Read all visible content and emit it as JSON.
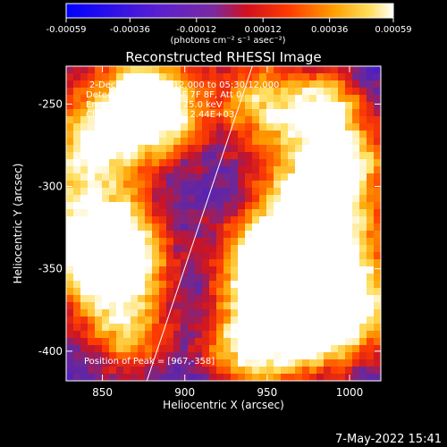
{
  "colorbar": {
    "tick_labels": [
      "-0.00059",
      "-0.00036",
      "-0.00012",
      "0.00012",
      "0.00036",
      "0.00059"
    ],
    "tick_values": [
      -0.00059,
      -0.00036,
      -0.00012,
      0.00012,
      0.00036,
      0.00059
    ],
    "range": [
      -0.00059,
      0.00059
    ],
    "unit_label": "(photons cm⁻² s⁻¹ asec⁻²)",
    "colormap": "blue-purple-red-orange-yellow-white"
  },
  "annotations": {
    "time": "2-Dec-2003 05:24:12.000 to 05:30:12.000",
    "detectors": "Detectors: 3F 4F 5F 6F 7F 8F, Att 0",
    "energy": "Energy Range: 12.0 - 25.0 keV",
    "clean": "Clean",
    "counts": "Total counts: 2.44E+03",
    "peak": "Position of Peak = [967,-358]"
  },
  "footer_date": "7-May-2022 15:41",
  "chart_data": {
    "type": "heatmap",
    "title": "Reconstructed RHESSI Image",
    "xlabel": "Heliocentric X (arcsec)",
    "ylabel": "Heliocentric Y (arcsec)",
    "xlim": [
      828,
      1019
    ],
    "ylim": [
      -418,
      -227
    ],
    "x_ticks": [
      850,
      900,
      950,
      1000
    ],
    "y_ticks": [
      -250,
      -300,
      -350,
      -400
    ],
    "x_tick_labels": [
      "850",
      "900",
      "950",
      "1000"
    ],
    "y_tick_labels": [
      "-250",
      "-300",
      "-350",
      "-400"
    ],
    "peak": [
      967,
      -358
    ],
    "limb_line": [
      [
        877,
        -418
      ],
      [
        941,
        -227
      ]
    ],
    "colors": {
      "low": "#0000ff",
      "mid": "#6a2bb5",
      "high": "#ff2000",
      "max": "#ffffff"
    }
  }
}
